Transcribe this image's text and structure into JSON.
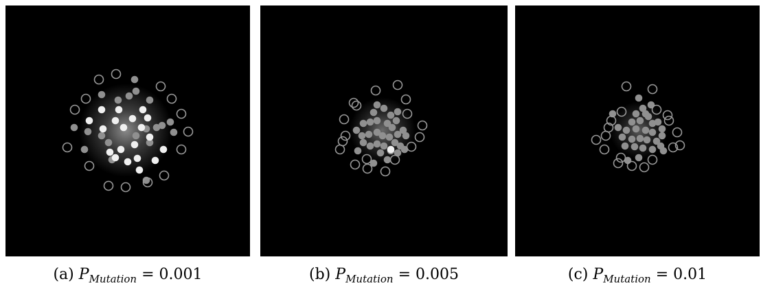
{
  "panels": [
    {
      "id": "a",
      "caption": {
        "label": "(a)",
        "symbol": "P",
        "subscript": "Mutation",
        "relation": "=",
        "value": "0.001"
      }
    },
    {
      "id": "b",
      "caption": {
        "label": "(b)",
        "symbol": "P",
        "subscript": "Mutation",
        "relation": "=",
        "value": "0.005"
      }
    },
    {
      "id": "c",
      "caption": {
        "label": "(c)",
        "symbol": "P",
        "subscript": "Mutation",
        "relation": "=",
        "value": "0.01"
      }
    }
  ],
  "colors": {
    "background": "#000000",
    "marker_gray": "#909090",
    "marker_white": "#f0f0f0",
    "ring": "#9a9a9a"
  }
}
